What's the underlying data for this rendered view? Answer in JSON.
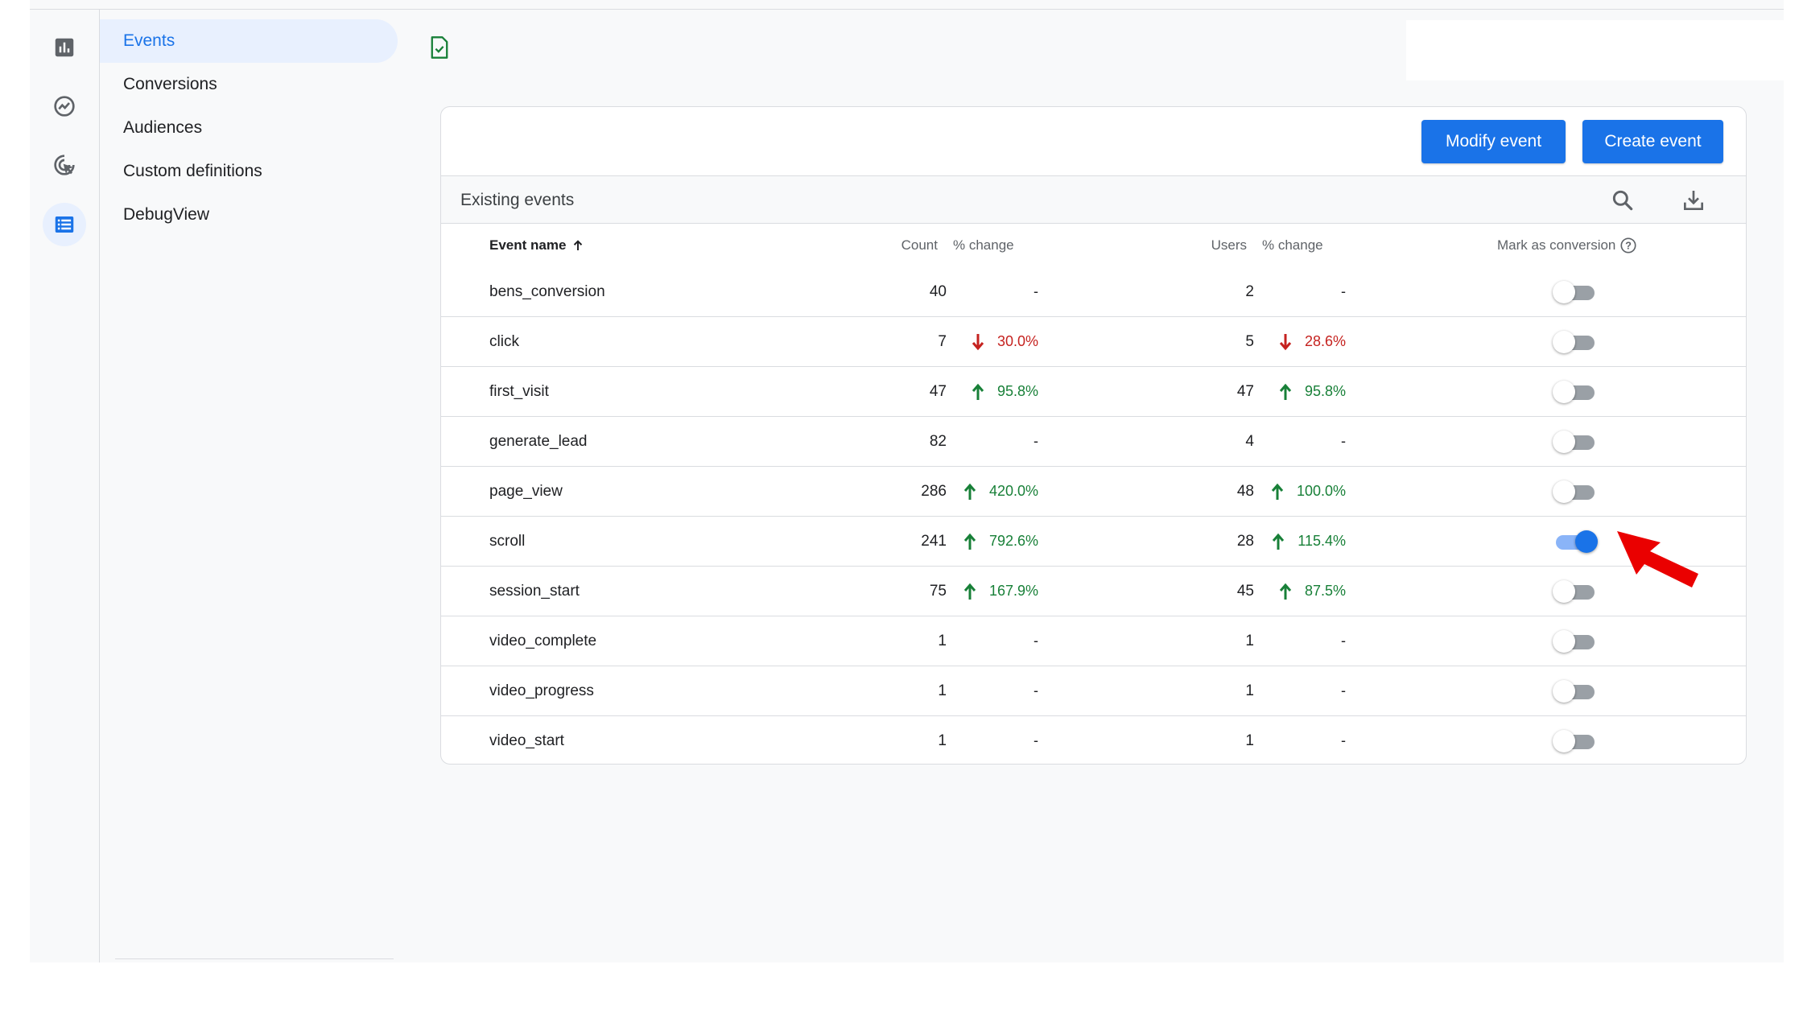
{
  "colors": {
    "accent": "#1a73e8",
    "up": "#188038",
    "down": "#c5221f",
    "annotation": "#ea0000"
  },
  "rail": {
    "icons": [
      "reports-icon",
      "explore-icon",
      "advertising-icon",
      "configure-icon"
    ]
  },
  "nav": {
    "items": [
      {
        "label": "Events",
        "active": true
      },
      {
        "label": "Conversions",
        "active": false
      },
      {
        "label": "Audiences",
        "active": false
      },
      {
        "label": "Custom definitions",
        "active": false
      },
      {
        "label": "DebugView",
        "active": false
      }
    ]
  },
  "actions": {
    "modify_label": "Modify event",
    "create_label": "Create event"
  },
  "table": {
    "title": "Existing events",
    "headers": {
      "event_name": "Event name",
      "count": "Count",
      "count_change": "% change",
      "users": "Users",
      "users_change": "% change",
      "mark_conversion": "Mark as conversion"
    },
    "rows": [
      {
        "name": "bens_conversion",
        "count": "40",
        "count_change": "-",
        "count_dir": "none",
        "users": "2",
        "users_change": "-",
        "users_dir": "none",
        "conversion": false
      },
      {
        "name": "click",
        "count": "7",
        "count_change": "30.0%",
        "count_dir": "down",
        "users": "5",
        "users_change": "28.6%",
        "users_dir": "down",
        "conversion": false
      },
      {
        "name": "first_visit",
        "count": "47",
        "count_change": "95.8%",
        "count_dir": "up",
        "users": "47",
        "users_change": "95.8%",
        "users_dir": "up",
        "conversion": false
      },
      {
        "name": "generate_lead",
        "count": "82",
        "count_change": "-",
        "count_dir": "none",
        "users": "4",
        "users_change": "-",
        "users_dir": "none",
        "conversion": false
      },
      {
        "name": "page_view",
        "count": "286",
        "count_change": "420.0%",
        "count_dir": "up",
        "users": "48",
        "users_change": "100.0%",
        "users_dir": "up",
        "conversion": false
      },
      {
        "name": "scroll",
        "count": "241",
        "count_change": "792.6%",
        "count_dir": "up",
        "users": "28",
        "users_change": "115.4%",
        "users_dir": "up",
        "conversion": true
      },
      {
        "name": "session_start",
        "count": "75",
        "count_change": "167.9%",
        "count_dir": "up",
        "users": "45",
        "users_change": "87.5%",
        "users_dir": "up",
        "conversion": false
      },
      {
        "name": "video_complete",
        "count": "1",
        "count_change": "-",
        "count_dir": "none",
        "users": "1",
        "users_change": "-",
        "users_dir": "none",
        "conversion": false
      },
      {
        "name": "video_progress",
        "count": "1",
        "count_change": "-",
        "count_dir": "none",
        "users": "1",
        "users_change": "-",
        "users_dir": "none",
        "conversion": false
      },
      {
        "name": "video_start",
        "count": "1",
        "count_change": "-",
        "count_dir": "none",
        "users": "1",
        "users_change": "-",
        "users_dir": "none",
        "conversion": false
      }
    ]
  }
}
